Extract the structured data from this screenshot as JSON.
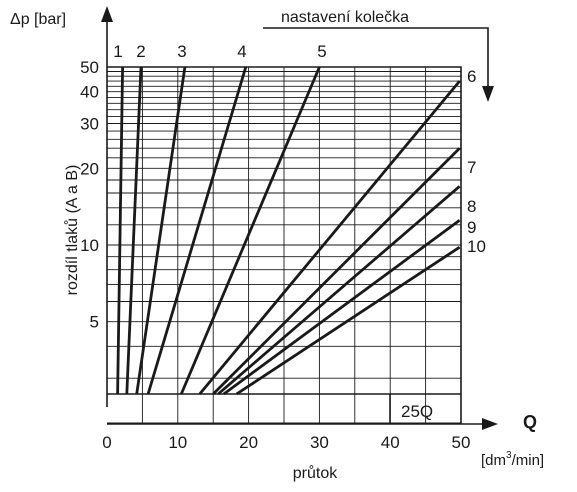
{
  "chart_data": {
    "type": "line",
    "ylabel_symbol": "Δp [bar]",
    "ylabel": "rozdíl tlaků (A a B)",
    "xlabel_symbol": "Q",
    "xlabel_unit_prefix": "[dm",
    "xlabel_unit_sup": "3",
    "xlabel_unit_suffix": "/min]",
    "xlabel": "průtok",
    "legend_title": "nastavení kolečka",
    "box_label": "25Q",
    "xlim": [
      0,
      50
    ],
    "x_ticks": [
      "0",
      "10",
      "20",
      "30",
      "40",
      "50"
    ],
    "x_tick_values": [
      0,
      10,
      20,
      30,
      40,
      50
    ],
    "y_ticks": [
      "5",
      "10",
      "20",
      "30",
      "40",
      "50"
    ],
    "y_tick_values": [
      5,
      10,
      20,
      30,
      40,
      50
    ],
    "series": [
      {
        "name": "1",
        "points": [
          [
            1.5,
            1.0
          ],
          [
            2.2,
            50
          ]
        ]
      },
      {
        "name": "2",
        "points": [
          [
            2.8,
            1.0
          ],
          [
            4.8,
            50
          ]
        ]
      },
      {
        "name": "3",
        "points": [
          [
            4.2,
            1.0
          ],
          [
            11.0,
            50
          ]
        ]
      },
      {
        "name": "4",
        "points": [
          [
            5.8,
            1.0
          ],
          [
            19.6,
            50
          ]
        ]
      },
      {
        "name": "5",
        "points": [
          [
            10.5,
            1.0
          ],
          [
            30.0,
            50
          ]
        ]
      },
      {
        "name": "6",
        "points": [
          [
            13.1,
            1.0
          ],
          [
            49.8,
            44
          ]
        ]
      },
      {
        "name": "7",
        "points": [
          [
            15.0,
            1.0
          ],
          [
            49.8,
            24
          ]
        ]
      },
      {
        "name": "8",
        "points": [
          [
            15.7,
            1.0
          ],
          [
            49.8,
            17
          ]
        ]
      },
      {
        "name": "9",
        "points": [
          [
            16.5,
            1.0
          ],
          [
            49.8,
            12.5
          ]
        ]
      },
      {
        "name": "10",
        "points": [
          [
            18.3,
            1.0
          ],
          [
            49.8,
            9.8
          ]
        ]
      }
    ]
  }
}
